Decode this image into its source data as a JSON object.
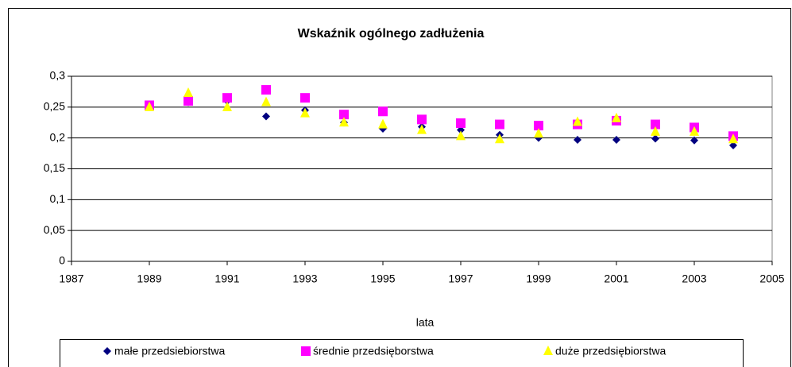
{
  "chart_data": {
    "type": "scatter",
    "title": "Wskaźnik ogólnego zadłużenia",
    "x_label": "lata",
    "x": [
      1989,
      1990,
      1991,
      1992,
      1993,
      1994,
      1995,
      1996,
      1997,
      1998,
      1999,
      2000,
      2001,
      2002,
      2003,
      2004
    ],
    "series": [
      {
        "name": "małe przedsiebiorstwa",
        "color": "#000080",
        "marker": "diamond",
        "values": [
          0.252,
          0.258,
          0.26,
          0.235,
          0.245,
          0.225,
          0.215,
          0.218,
          0.213,
          0.205,
          0.2,
          0.197,
          0.197,
          0.199,
          0.196,
          0.188
        ]
      },
      {
        "name": "średnie przedsięborstwa",
        "color": "#ff00ff",
        "marker": "square",
        "values": [
          0.253,
          0.26,
          0.265,
          0.278,
          0.265,
          0.238,
          0.243,
          0.23,
          0.224,
          0.222,
          0.22,
          0.222,
          0.228,
          0.222,
          0.217,
          0.203
        ]
      },
      {
        "name": "duże przedsiębiorstwa",
        "color": "#ffff00",
        "marker": "triangle",
        "values": [
          0.25,
          0.273,
          0.25,
          0.258,
          0.24,
          0.225,
          0.222,
          0.213,
          0.203,
          0.198,
          0.207,
          0.226,
          0.232,
          0.21,
          0.21,
          0.198
        ]
      }
    ],
    "xlim": [
      1987,
      2005
    ],
    "xticks": [
      1987,
      1989,
      1991,
      1993,
      1995,
      1997,
      1999,
      2001,
      2003,
      2005
    ],
    "ylim": [
      0,
      0.3
    ],
    "yticks": [
      0,
      {
        "value": 0.05,
        "label": "0,05"
      },
      {
        "value": 0.1,
        "label": "0,1"
      },
      {
        "value": 0.15,
        "label": "0,15"
      },
      {
        "value": 0.2,
        "label": "0,2"
      },
      {
        "value": 0.25,
        "label": "0,25"
      },
      {
        "value": 0.3,
        "label": "0,3"
      }
    ],
    "grid": true,
    "legend": "bottom"
  }
}
